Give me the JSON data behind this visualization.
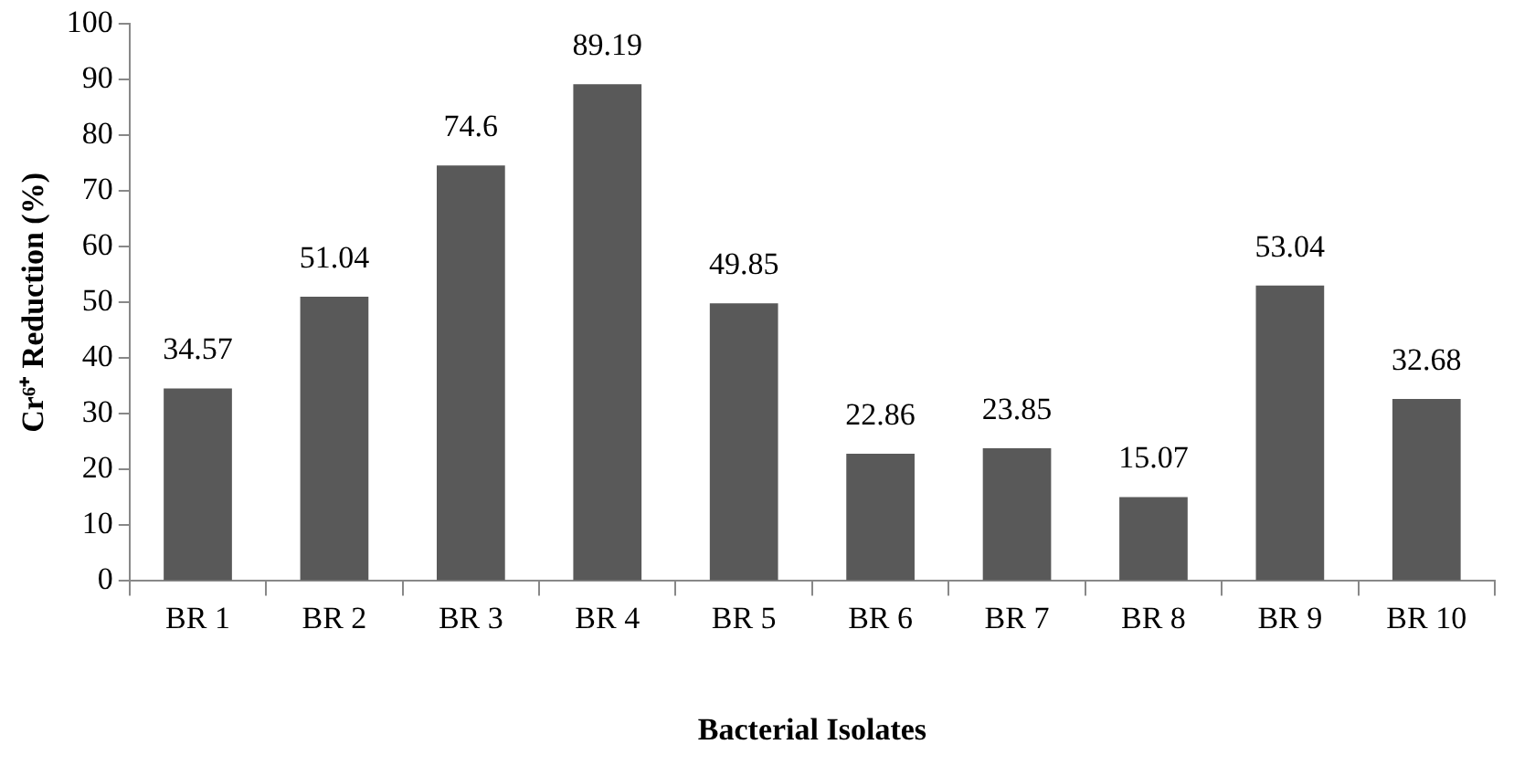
{
  "chart_data": {
    "type": "bar",
    "xlabel": "Bacterial Isolates",
    "ylabel": "Cr⁶⁺ Reduction (%)",
    "categories": [
      "BR 1",
      "BR 2",
      "BR 3",
      "BR 4",
      "BR 5",
      "BR 6",
      "BR 7",
      "BR 8",
      "BR 9",
      "BR 10"
    ],
    "values": [
      34.57,
      51.04,
      74.6,
      89.19,
      49.85,
      22.86,
      23.85,
      15.07,
      53.04,
      32.68
    ],
    "color": "#595959",
    "ylim": [
      0,
      100
    ],
    "yticks": [
      0,
      10,
      20,
      30,
      40,
      50,
      60,
      70,
      80,
      90,
      100
    ],
    "grid": false,
    "legend": false,
    "data_labels": true
  }
}
